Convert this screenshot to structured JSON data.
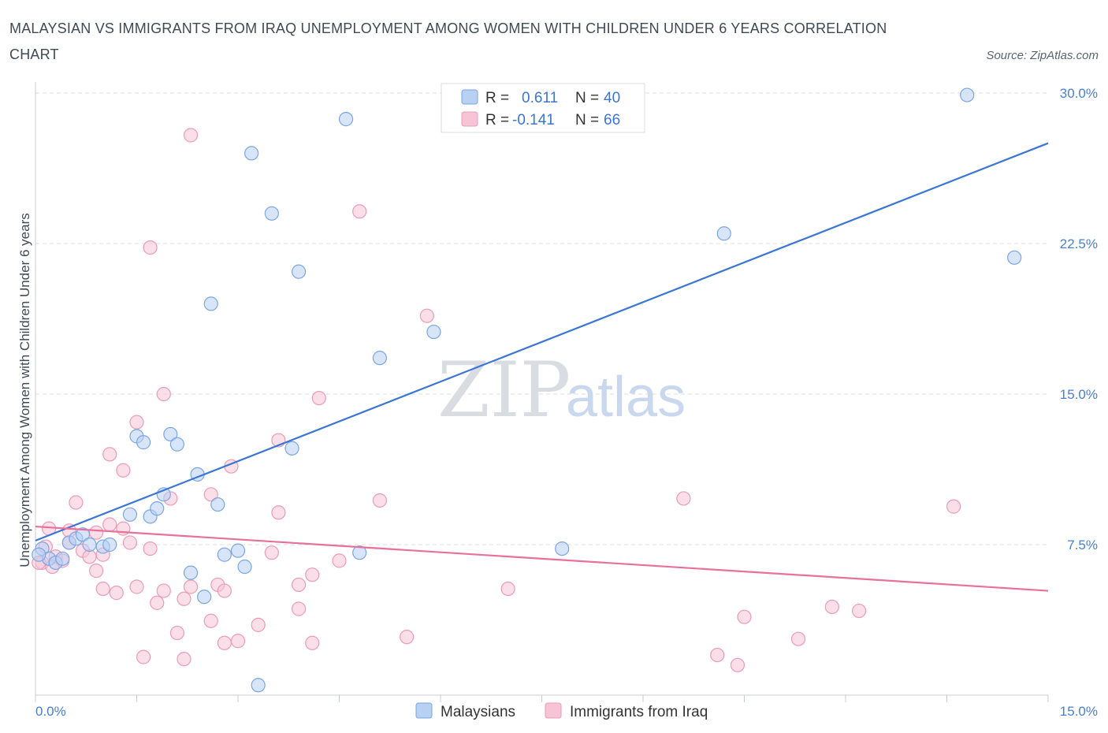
{
  "title": "MALAYSIAN VS IMMIGRANTS FROM IRAQ UNEMPLOYMENT AMONG WOMEN WITH CHILDREN UNDER 6 YEARS CORRELATION CHART",
  "source": "Source: ZipAtlas.com",
  "watermark": {
    "zip": "ZIP",
    "atlas": "atlas"
  },
  "colors": {
    "blue": "#3a76d4",
    "blue_fill": "#b8d0f2",
    "pink": "#e8709a",
    "pink_fill": "#f7c4d5",
    "grid": "#d9dde2",
    "tick_text": "#4a7fd0"
  },
  "legend": {
    "rows": [
      {
        "r_label": "R =",
        "r_value": "0.611",
        "n_label": "N =",
        "n_value": "40"
      },
      {
        "r_label": "R =",
        "r_value": "-0.141",
        "n_label": "N =",
        "n_value": "66"
      }
    ]
  },
  "bottom_legend": [
    "Malaysians",
    "Immigrants from Iraq"
  ],
  "chart_data": {
    "type": "scatter",
    "xlabel": "",
    "ylabel": "Unemployment Among Women with Children Under 6 years",
    "xlim": [
      0,
      15
    ],
    "ylim": [
      0,
      30
    ],
    "x_tick_labels": [
      "0.0%",
      "15.0%"
    ],
    "y_tick_labels": [
      "7.5%",
      "15.0%",
      "22.5%",
      "30.0%"
    ],
    "y_ticks": [
      7.5,
      15,
      22.5,
      30
    ],
    "legend_position": "top-center",
    "grid": true,
    "series": [
      {
        "name": "Malaysians",
        "trend": [
          [
            0,
            7.7
          ],
          [
            15,
            27.5
          ]
        ],
        "points": [
          [
            0.1,
            7.3
          ],
          [
            0.2,
            6.8
          ],
          [
            0.3,
            6.6
          ],
          [
            0.4,
            6.8
          ],
          [
            0.5,
            7.6
          ],
          [
            0.6,
            7.8
          ],
          [
            0.7,
            8.0
          ],
          [
            0.8,
            7.5
          ],
          [
            1.0,
            7.4
          ],
          [
            1.1,
            7.5
          ],
          [
            1.4,
            9.0
          ],
          [
            1.5,
            12.9
          ],
          [
            1.6,
            12.6
          ],
          [
            1.7,
            8.9
          ],
          [
            1.8,
            9.3
          ],
          [
            1.9,
            10.0
          ],
          [
            2.0,
            13.0
          ],
          [
            2.1,
            12.5
          ],
          [
            2.3,
            6.1
          ],
          [
            2.4,
            11.0
          ],
          [
            2.5,
            4.9
          ],
          [
            2.6,
            19.5
          ],
          [
            2.7,
            9.5
          ],
          [
            2.8,
            7.0
          ],
          [
            3.0,
            7.2
          ],
          [
            3.1,
            6.4
          ],
          [
            3.2,
            27.0
          ],
          [
            3.3,
            0.5
          ],
          [
            3.5,
            24.0
          ],
          [
            3.8,
            12.3
          ],
          [
            3.9,
            21.1
          ],
          [
            4.6,
            28.7
          ],
          [
            4.8,
            7.1
          ],
          [
            5.1,
            16.8
          ],
          [
            5.9,
            18.1
          ],
          [
            7.8,
            7.3
          ],
          [
            10.2,
            23.0
          ],
          [
            13.8,
            29.9
          ],
          [
            14.5,
            21.8
          ],
          [
            0.05,
            7.0
          ]
        ]
      },
      {
        "name": "Immigrants from Iraq",
        "trend": [
          [
            0,
            8.4
          ],
          [
            15,
            5.2
          ]
        ],
        "points": [
          [
            0.1,
            6.6
          ],
          [
            0.2,
            8.3
          ],
          [
            0.3,
            6.9
          ],
          [
            0.4,
            6.7
          ],
          [
            0.5,
            7.6
          ],
          [
            0.5,
            8.2
          ],
          [
            0.6,
            9.6
          ],
          [
            0.7,
            7.2
          ],
          [
            0.8,
            6.9
          ],
          [
            0.9,
            8.1
          ],
          [
            0.9,
            6.2
          ],
          [
            1.0,
            7.0
          ],
          [
            1.0,
            5.3
          ],
          [
            1.1,
            8.5
          ],
          [
            1.1,
            12.0
          ],
          [
            1.2,
            5.1
          ],
          [
            1.3,
            8.3
          ],
          [
            1.3,
            11.2
          ],
          [
            1.4,
            7.6
          ],
          [
            1.5,
            5.4
          ],
          [
            1.5,
            13.6
          ],
          [
            1.6,
            1.9
          ],
          [
            1.7,
            7.3
          ],
          [
            1.7,
            22.3
          ],
          [
            1.8,
            4.6
          ],
          [
            1.9,
            15.0
          ],
          [
            1.9,
            5.2
          ],
          [
            2.0,
            9.8
          ],
          [
            2.1,
            3.1
          ],
          [
            2.2,
            4.8
          ],
          [
            2.2,
            1.8
          ],
          [
            2.3,
            5.4
          ],
          [
            2.3,
            27.9
          ],
          [
            2.6,
            3.7
          ],
          [
            2.6,
            10.0
          ],
          [
            2.7,
            5.5
          ],
          [
            2.8,
            5.2
          ],
          [
            2.8,
            2.6
          ],
          [
            2.9,
            11.4
          ],
          [
            3.0,
            2.7
          ],
          [
            3.3,
            3.5
          ],
          [
            3.5,
            7.1
          ],
          [
            3.6,
            12.7
          ],
          [
            3.6,
            9.1
          ],
          [
            3.9,
            4.3
          ],
          [
            3.9,
            5.5
          ],
          [
            4.1,
            6.0
          ],
          [
            4.1,
            2.6
          ],
          [
            4.2,
            14.8
          ],
          [
            4.5,
            6.7
          ],
          [
            4.8,
            24.1
          ],
          [
            5.1,
            9.7
          ],
          [
            5.5,
            2.9
          ],
          [
            5.8,
            18.9
          ],
          [
            7.0,
            5.3
          ],
          [
            9.6,
            9.8
          ],
          [
            10.1,
            2.0
          ],
          [
            10.4,
            1.5
          ],
          [
            10.5,
            3.9
          ],
          [
            11.3,
            2.8
          ],
          [
            11.8,
            4.4
          ],
          [
            12.2,
            4.2
          ],
          [
            13.6,
            9.4
          ],
          [
            0.05,
            6.6
          ],
          [
            0.15,
            7.4
          ],
          [
            0.25,
            6.4
          ]
        ]
      }
    ]
  }
}
